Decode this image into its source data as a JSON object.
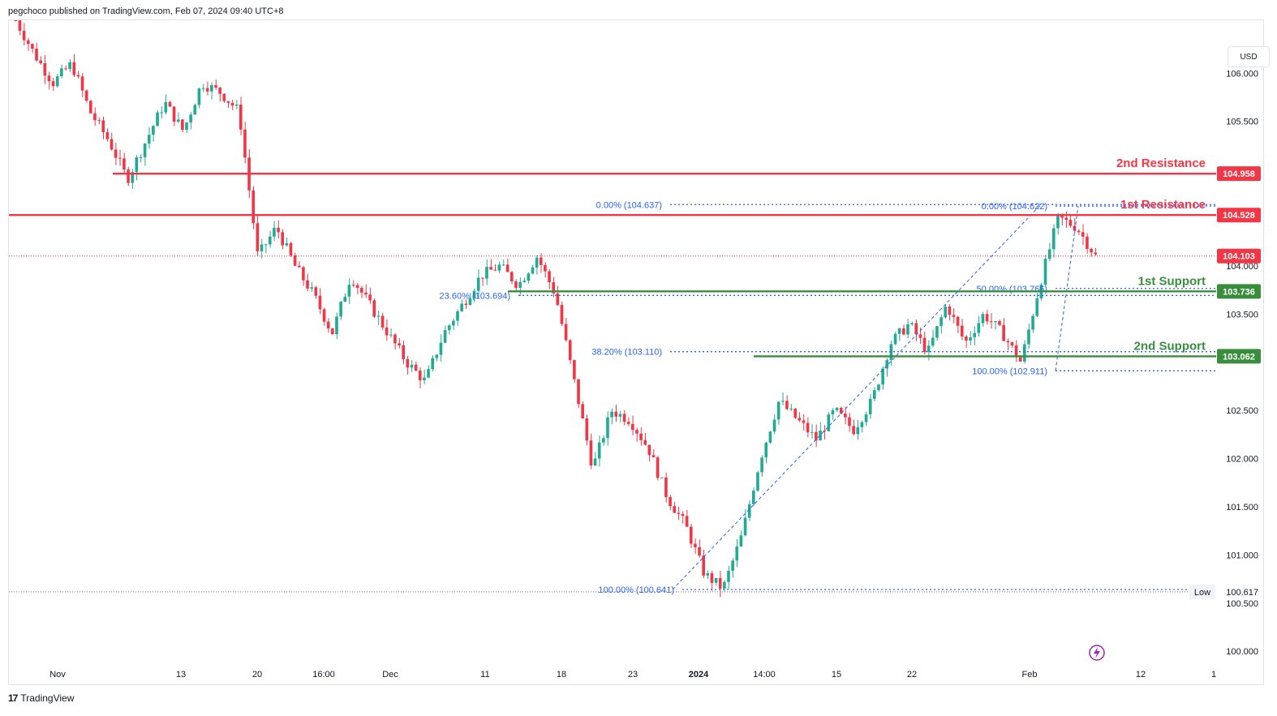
{
  "header": {
    "publisher_text": "pegchoco published on TradingView.com, Feb 07, 2024 09:40 UTC+8"
  },
  "footer": {
    "brand": "TradingView",
    "logo_glyph": "17"
  },
  "currency": "USD",
  "colors": {
    "up": "#22ab94",
    "down": "#f23645",
    "resistance": "#f23645",
    "support": "#388e3c",
    "fib": "#2962ff",
    "fib_text": "#2962ff",
    "last_price": "#f23645",
    "grid_text": "#131722"
  },
  "chart_data": {
    "type": "candlestick",
    "symbol_quote": "USD",
    "y_axis": {
      "min": 99.85,
      "max": 106.55,
      "ticks": [
        "106.000",
        "105.500",
        "104.000",
        "103.500",
        "102.500",
        "102.000",
        "101.500",
        "101.000",
        "100.500",
        "100.000"
      ]
    },
    "x_axis": {
      "ticks": [
        "Nov",
        "13",
        "20",
        "16:00",
        "Dec",
        "11",
        "18",
        "23",
        "2024",
        "14:00",
        "15",
        "22",
        "Feb",
        "12",
        "1"
      ]
    },
    "price_path": [
      [
        "Nov",
        106.55
      ],
      [
        "Nov",
        106.2
      ],
      [
        "Nov",
        105.9
      ],
      [
        "Nov",
        106.1
      ],
      [
        "Nov",
        105.6
      ],
      [
        "Nov",
        105.3
      ],
      [
        "Nov",
        104.9
      ],
      [
        "Nov",
        105.3
      ],
      [
        "13",
        105.7
      ],
      [
        "13",
        105.4
      ],
      [
        "13",
        105.9
      ],
      [
        "13",
        105.8
      ],
      [
        "13",
        105.6
      ],
      [
        "13",
        104.1
      ],
      [
        "20",
        104.4
      ],
      [
        "20",
        104.0
      ],
      [
        "20",
        103.7
      ],
      [
        "20",
        103.3
      ],
      [
        "16:00",
        103.9
      ],
      [
        "16:00",
        103.6
      ],
      [
        "16:00",
        103.3
      ],
      [
        "Dec",
        103.0
      ],
      [
        "Dec",
        102.8
      ],
      [
        "Dec",
        103.3
      ],
      [
        "Dec",
        103.6
      ],
      [
        "Dec",
        103.9
      ],
      [
        "Dec",
        104.0
      ],
      [
        "11",
        103.8
      ],
      [
        "11",
        104.1
      ],
      [
        "11",
        103.7
      ],
      [
        "18",
        102.8
      ],
      [
        "18",
        101.9
      ],
      [
        "18",
        102.5
      ],
      [
        "18",
        102.4
      ],
      [
        "23",
        102.1
      ],
      [
        "23",
        101.6
      ],
      [
        "23",
        101.3
      ],
      [
        "23",
        100.8
      ],
      [
        "23",
        100.65
      ],
      [
        "2024",
        101.2
      ],
      [
        "2024",
        102.0
      ],
      [
        "2024",
        102.6
      ],
      [
        "14:00",
        102.4
      ],
      [
        "14:00",
        102.2
      ],
      [
        "14:00",
        102.5
      ],
      [
        "15",
        102.3
      ],
      [
        "15",
        102.6
      ],
      [
        "15",
        103.2
      ],
      [
        "22",
        103.4
      ],
      [
        "22",
        103.1
      ],
      [
        "22",
        103.6
      ],
      [
        "22",
        103.2
      ],
      [
        "Feb",
        103.5
      ],
      [
        "Feb",
        103.3
      ],
      [
        "Feb",
        103.0
      ],
      [
        "Feb",
        103.8
      ],
      [
        "Feb",
        104.5
      ],
      [
        "Feb",
        104.4
      ],
      [
        "Feb",
        104.103
      ]
    ],
    "last_price": 104.103,
    "low_marker": {
      "label": "Low",
      "value": 100.617
    },
    "levels": [
      {
        "name": "2nd Resistance",
        "value": 104.958,
        "label": "104.958",
        "kind": "resistance"
      },
      {
        "name": "1st Resistance",
        "value": 104.528,
        "label": "104.528",
        "kind": "resistance"
      },
      {
        "name": "1st Support",
        "value": 103.736,
        "label": "103.736",
        "kind": "support"
      },
      {
        "name": "2nd Support",
        "value": 103.062,
        "label": "103.062",
        "kind": "support"
      }
    ],
    "fib_left": [
      {
        "label": "0.00% (104.637)",
        "value": 104.637
      },
      {
        "label": "23.60% (103.694)",
        "value": 103.694
      },
      {
        "label": "38.20% (103.110)",
        "value": 103.11
      },
      {
        "label": "100.00% (100.641)",
        "value": 100.641
      }
    ],
    "fib_right": [
      {
        "label": "0.00% (104.622)",
        "value": 104.622
      },
      {
        "label": "50.00% (103.766)",
        "value": 103.766
      },
      {
        "label": "100.00% (102.911)",
        "value": 102.911
      }
    ],
    "last_price_label": "104.103",
    "low_value_label": "100.617"
  }
}
